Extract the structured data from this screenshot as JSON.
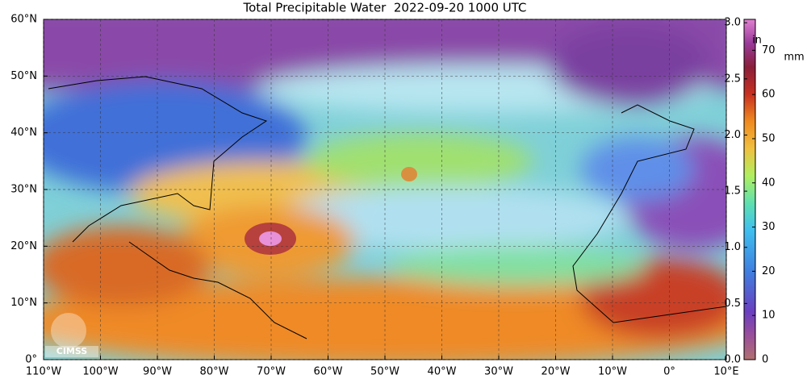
{
  "title": "Total Precipitable Water  2022-09-20 1000 UTC",
  "map": {
    "lat_lim": [
      0,
      60
    ],
    "lat_ticks": [
      {
        "value": 0,
        "label": "0°"
      },
      {
        "value": 10,
        "label": "10°N"
      },
      {
        "value": 20,
        "label": "20°N"
      },
      {
        "value": 30,
        "label": "30°N"
      },
      {
        "value": 40,
        "label": "40°N"
      },
      {
        "value": 50,
        "label": "50°N"
      },
      {
        "value": 60,
        "label": "60°N"
      }
    ],
    "lon_lim": [
      -110,
      10
    ],
    "lon_ticks": [
      {
        "value": -110,
        "label": "110°W"
      },
      {
        "value": -100,
        "label": "100°W"
      },
      {
        "value": -90,
        "label": "90°W"
      },
      {
        "value": -80,
        "label": "80°W"
      },
      {
        "value": -70,
        "label": "70°W"
      },
      {
        "value": -60,
        "label": "60°W"
      },
      {
        "value": -50,
        "label": "50°W"
      },
      {
        "value": -40,
        "label": "40°W"
      },
      {
        "value": -30,
        "label": "30°W"
      },
      {
        "value": -20,
        "label": "20°W"
      },
      {
        "value": -10,
        "label": "10°W"
      },
      {
        "value": 0,
        "label": "0°"
      },
      {
        "value": 10,
        "label": "10°E"
      }
    ],
    "grid": true
  },
  "colorbar": {
    "in_label": "in",
    "mm_label": "mm",
    "in_lim": [
      0,
      3.03
    ],
    "in_ticks": [
      {
        "value": 0,
        "label": "0.0"
      },
      {
        "value": 0.5,
        "label": "0.5"
      },
      {
        "value": 1,
        "label": "1.0"
      },
      {
        "value": 1.5,
        "label": "1.5"
      },
      {
        "value": 2,
        "label": "2.0"
      },
      {
        "value": 2.5,
        "label": "2.5"
      },
      {
        "value": 3,
        "label": "3.0"
      }
    ],
    "mm_lim": [
      0,
      77
    ],
    "mm_ticks": [
      0,
      10,
      20,
      30,
      40,
      50,
      60,
      70
    ]
  },
  "logo": "CIMSS"
}
